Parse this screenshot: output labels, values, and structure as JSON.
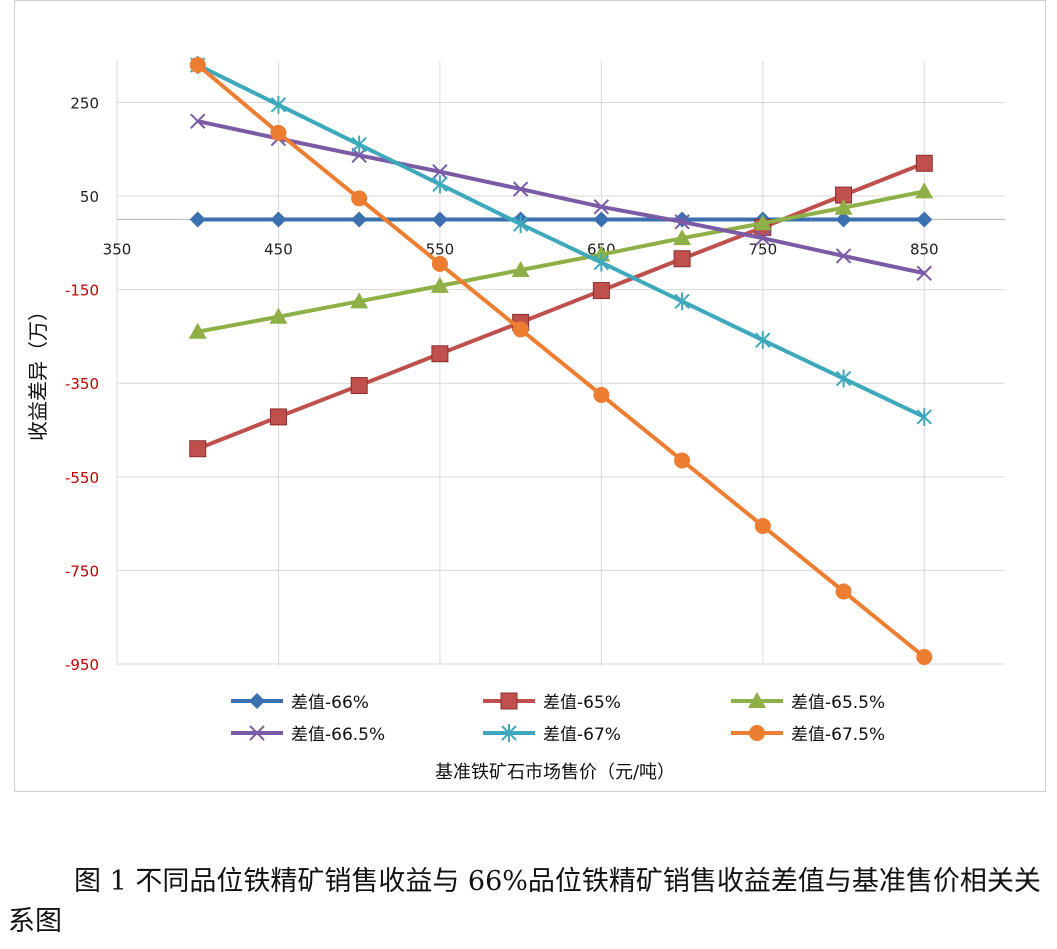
{
  "chart_data": {
    "type": "line",
    "title": "",
    "xlabel": "基准铁矿石市场售价（元/吨）",
    "ylabel": "收益差异（万）",
    "xlim": [
      350,
      900
    ],
    "ylim": [
      -950,
      350
    ],
    "x_ticks": [
      "350",
      "450",
      "550",
      "650",
      "750",
      "850"
    ],
    "y_ticks": [
      "250",
      "50",
      "-150",
      "-350",
      "-550",
      "-750",
      "-950"
    ],
    "legend_position": "bottom",
    "grid": true,
    "x": [
      400,
      450,
      500,
      550,
      600,
      650,
      700,
      750,
      800,
      850
    ],
    "series": [
      {
        "name": "差值-66%",
        "color": "#3a6fb0",
        "marker": "diamond",
        "values": [
          0,
          0,
          0,
          0,
          0,
          0,
          0,
          0,
          0,
          0
        ]
      },
      {
        "name": "差值-65%",
        "color": "#c0504d",
        "marker": "square",
        "values": [
          -490,
          -422,
          -355,
          -287,
          -220,
          -152,
          -84,
          -17,
          52,
          120
        ]
      },
      {
        "name": "差值-65.5%",
        "color": "#8fb046",
        "marker": "triangle",
        "values": [
          -240,
          -208,
          -175,
          -142,
          -108,
          -75,
          -40,
          -8,
          25,
          60
        ]
      },
      {
        "name": "差值-66.5%",
        "color": "#7b5aa6",
        "marker": "x",
        "values": [
          210,
          173,
          137,
          102,
          65,
          27,
          -5,
          -40,
          -78,
          -115
        ]
      },
      {
        "name": "差值-67%",
        "color": "#3ea8bd",
        "marker": "star",
        "values": [
          330,
          245,
          160,
          75,
          -10,
          -92,
          -175,
          -258,
          -340,
          -422
        ]
      },
      {
        "name": "差值-67.5%",
        "color": "#ed7d31",
        "marker": "circle",
        "values": [
          330,
          185,
          45,
          -95,
          -235,
          -375,
          -515,
          -655,
          -795,
          -935
        ]
      }
    ]
  },
  "caption": "图 1  不同品位铁精矿销售收益与 66%品位铁精矿销售收益差值与基准售价相关关系图",
  "colors": {
    "tick_label_negative": "#c00000",
    "grid": "#d9d9d9",
    "axis": "#bfbfbf"
  }
}
